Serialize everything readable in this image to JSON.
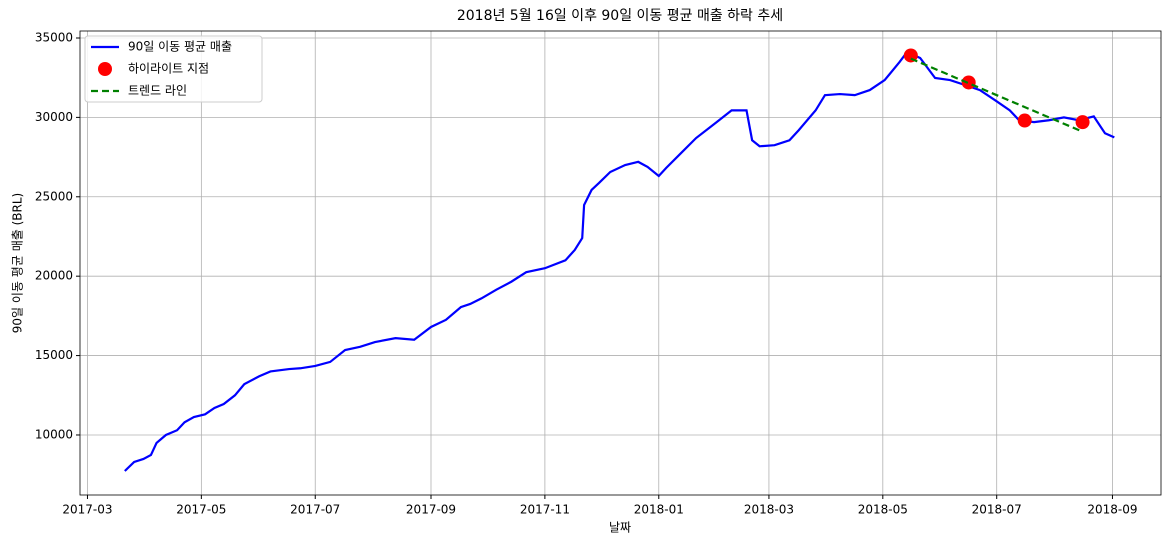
{
  "chart_data": {
    "type": "line",
    "title": "2018년 5월 16일 이후 90일 이동 평균 매출 하락 추세",
    "xlabel": "날짜",
    "ylabel": "90일 이동 평균 매출 (BRL)",
    "xlim": [
      "2017-02-25",
      "2018-09-27"
    ],
    "ylim": [
      6220,
      35440
    ],
    "xticks": [
      "2017-03",
      "2017-05",
      "2017-07",
      "2017-09",
      "2017-11",
      "2018-01",
      "2018-03",
      "2018-05",
      "2018-07",
      "2018-09"
    ],
    "yticks": [
      10000,
      15000,
      20000,
      25000,
      30000,
      35000
    ],
    "grid": true,
    "legend": "upper left",
    "series": [
      {
        "name": "90일 이동 평균 매출",
        "color": "#0000ff",
        "style": "line",
        "x": [
          "2017-03-21",
          "2017-03-26",
          "2017-03-31",
          "2017-04-04",
          "2017-04-07",
          "2017-04-12",
          "2017-04-18",
          "2017-04-22",
          "2017-04-27",
          "2017-05-03",
          "2017-05-08",
          "2017-05-13",
          "2017-05-19",
          "2017-05-24",
          "2017-06-01",
          "2017-06-07",
          "2017-06-17",
          "2017-06-23",
          "2017-07-01",
          "2017-07-09",
          "2017-07-17",
          "2017-07-25",
          "2017-08-02",
          "2017-08-13",
          "2017-08-23",
          "2017-09-01",
          "2017-09-09",
          "2017-09-17",
          "2017-09-22",
          "2017-09-28",
          "2017-10-06",
          "2017-10-14",
          "2017-10-22",
          "2017-11-01",
          "2017-11-12",
          "2017-11-17",
          "2017-11-21",
          "2017-11-22",
          "2017-11-26",
          "2017-11-30",
          "2017-12-06",
          "2017-12-14",
          "2017-12-21",
          "2017-12-26",
          "2018-01-01",
          "2018-01-05",
          "2018-01-13",
          "2018-01-21",
          "2018-02-01",
          "2018-02-09",
          "2018-02-17",
          "2018-02-20",
          "2018-02-24",
          "2018-03-04",
          "2018-03-12",
          "2018-03-17",
          "2018-03-26",
          "2018-03-31",
          "2018-04-08",
          "2018-04-16",
          "2018-04-24",
          "2018-05-02",
          "2018-05-10",
          "2018-05-14",
          "2018-05-21",
          "2018-05-29",
          "2018-06-06",
          "2018-06-14",
          "2018-06-22",
          "2018-06-30",
          "2018-07-08",
          "2018-07-13",
          "2018-07-21",
          "2018-07-29",
          "2018-08-06",
          "2018-08-14",
          "2018-08-22",
          "2018-08-28",
          "2018-09-02"
        ],
        "values": [
          7730,
          8300,
          8490,
          8740,
          9500,
          10000,
          10300,
          10800,
          11130,
          11300,
          11700,
          11950,
          12500,
          13200,
          13700,
          14000,
          14150,
          14200,
          14350,
          14600,
          15350,
          15550,
          15850,
          16100,
          16000,
          16800,
          17250,
          18050,
          18250,
          18600,
          19150,
          19650,
          20250,
          20500,
          21000,
          21650,
          22400,
          24480,
          25430,
          25870,
          26560,
          27000,
          27200,
          26880,
          26310,
          26820,
          27760,
          28700,
          29700,
          30440,
          30440,
          28560,
          28180,
          28250,
          28560,
          29200,
          30440,
          31400,
          31470,
          31400,
          31720,
          32350,
          33490,
          34120,
          33740,
          32480,
          32350,
          32040,
          31720,
          31090,
          30440,
          29820,
          29700,
          29820,
          30000,
          29820,
          30060,
          29000,
          28740
        ]
      },
      {
        "name": "하이라이트 지점",
        "color": "#ff0000",
        "style": "scatter",
        "x": [
          "2018-05-16",
          "2018-06-16",
          "2018-07-16",
          "2018-08-16"
        ],
        "values": [
          33900,
          32200,
          29800,
          29700
        ]
      },
      {
        "name": "트렌드 라인",
        "color": "#008000",
        "style": "dashed",
        "x": [
          "2018-05-16",
          "2018-08-16"
        ],
        "values": [
          33700,
          29100
        ]
      }
    ]
  }
}
